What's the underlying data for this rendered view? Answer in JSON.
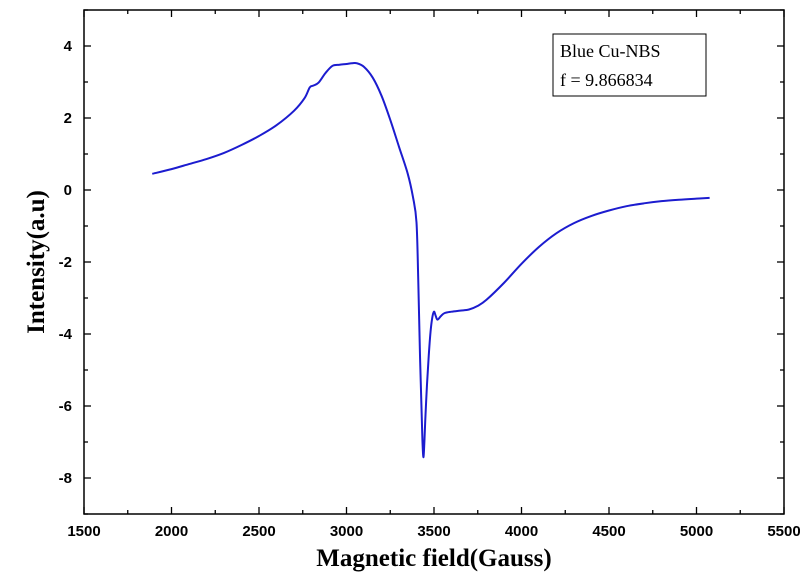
{
  "chart_data": {
    "type": "line",
    "xlabel": "Magnetic field(Gauss)",
    "ylabel": "Intensity(a.u)",
    "xlim": [
      1500,
      5500
    ],
    "ylim": [
      -9,
      5
    ],
    "xticks": [
      1500,
      2000,
      2500,
      3000,
      3500,
      4000,
      4500,
      5000,
      5500
    ],
    "yticks": [
      -8,
      -6,
      -4,
      -2,
      0,
      2,
      4
    ],
    "grid": false,
    "legend_position": "top-right",
    "legend": {
      "line1": "Blue Cu-NBS",
      "line2": "f = 9.866834"
    },
    "series": [
      {
        "color": "#1c1ccf",
        "x": [
          1890,
          2000,
          2100,
          2200,
          2300,
          2400,
          2500,
          2600,
          2700,
          2760,
          2790,
          2810,
          2840,
          2880,
          2920,
          2960,
          3000,
          3030,
          3060,
          3100,
          3150,
          3200,
          3250,
          3300,
          3350,
          3380,
          3400,
          3410,
          3420,
          3430,
          3435,
          3440,
          3445,
          3450,
          3460,
          3470,
          3480,
          3490,
          3500,
          3510,
          3520,
          3540,
          3560,
          3600,
          3650,
          3700,
          3750,
          3800,
          3900,
          4000,
          4100,
          4200,
          4300,
          4400,
          4500,
          4600,
          4700,
          4800,
          4900,
          5000,
          5075
        ],
        "y": [
          0.45,
          0.58,
          0.72,
          0.86,
          1.03,
          1.25,
          1.5,
          1.8,
          2.2,
          2.55,
          2.85,
          2.9,
          2.98,
          3.25,
          3.45,
          3.48,
          3.5,
          3.52,
          3.52,
          3.42,
          3.12,
          2.62,
          1.95,
          1.2,
          0.45,
          -0.2,
          -0.9,
          -2.5,
          -4.6,
          -6.3,
          -7.1,
          -7.42,
          -7.0,
          -6.4,
          -5.4,
          -4.6,
          -3.95,
          -3.55,
          -3.38,
          -3.5,
          -3.6,
          -3.5,
          -3.42,
          -3.38,
          -3.35,
          -3.32,
          -3.22,
          -3.05,
          -2.58,
          -2.05,
          -1.58,
          -1.2,
          -0.92,
          -0.72,
          -0.57,
          -0.45,
          -0.37,
          -0.31,
          -0.27,
          -0.24,
          -0.22
        ]
      }
    ]
  }
}
